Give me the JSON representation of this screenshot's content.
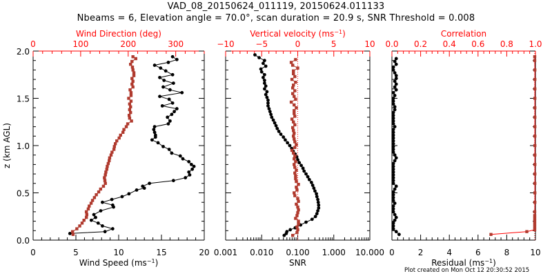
{
  "header": {
    "title_line1": "VAD_08_20150624_011119, 20150624.011133",
    "title_line2": "Nbeams = 6, Elevation angle = 70.0°, scan duration = 20.9 s, SNR Threshold = 0.008"
  },
  "footer": {
    "created": "Plot created on Mon Oct 12 20:30:52 2015"
  },
  "colors": {
    "primary": "#000000",
    "secondary": "#b03a2e",
    "axis_secondary": "#ff0000"
  },
  "chart_data": [
    {
      "type": "line",
      "panel": "wind",
      "ylabel": "z (km AGL)",
      "ylim": [
        0.0,
        2.0
      ],
      "yticks": [
        0.0,
        0.5,
        1.0,
        1.5,
        2.0
      ],
      "ytick_labels": [
        "0.0",
        "0.5",
        "1.0",
        "1.5",
        "2.0"
      ],
      "xlabel": "Wind Speed (ms",
      "xlabel_sup": "-1",
      "xlim": [
        0,
        20
      ],
      "xticks": [
        0,
        5,
        10,
        15,
        20
      ],
      "xtick_labels": [
        "0",
        "5",
        "10",
        "15",
        "20"
      ],
      "top_xlabel": "Wind Direction (deg)",
      "top_xlim": [
        0,
        360
      ],
      "top_xticks": [
        0,
        100,
        200,
        300
      ],
      "top_xtick_labels": [
        "0",
        "100",
        "200",
        "300"
      ],
      "series": [
        {
          "name": "Wind Speed",
          "axis": "bottom",
          "color": "#000000",
          "z": [
            0.07,
            0.09,
            0.12,
            0.15,
            0.18,
            0.21,
            0.24,
            0.27,
            0.31,
            0.35,
            0.37,
            0.4,
            0.43,
            0.46,
            0.49,
            0.53,
            0.55,
            0.57,
            0.6,
            0.63,
            0.66,
            0.69,
            0.72,
            0.75,
            0.78,
            0.8,
            0.83,
            0.86,
            0.89,
            0.92,
            0.96,
            0.99,
            1.03,
            1.06,
            1.09,
            1.11,
            1.14,
            1.17,
            1.2,
            1.23,
            1.26,
            1.3,
            1.33,
            1.36,
            1.39,
            1.42,
            1.45,
            1.49,
            1.52,
            1.56,
            1.59,
            1.62,
            1.66,
            1.69,
            1.72,
            1.75,
            1.79,
            1.82,
            1.85,
            1.88,
            1.91,
            1.94
          ],
          "values": [
            4.3,
            8.4,
            9.3,
            8.1,
            7.6,
            6.8,
            7.3,
            7.1,
            7.9,
            9.4,
            9.3,
            8.1,
            9.2,
            10.4,
            11.2,
            12.1,
            13.0,
            12.8,
            13.6,
            16.4,
            17.8,
            18.3,
            18.2,
            18.6,
            18.8,
            18.5,
            18.2,
            17.5,
            17.2,
            16.2,
            15.9,
            15.2,
            14.6,
            13.9,
            14.3,
            14.3,
            14.2,
            14.1,
            14.2,
            15.8,
            16.0,
            15.7,
            16.2,
            16.5,
            16.8,
            15.1,
            16.3,
            15.9,
            14.8,
            17.4,
            16.0,
            15.2,
            16.4,
            15.3,
            14.8,
            16.3,
            15.5,
            14.9,
            14.2,
            15.8,
            16.8,
            16.3
          ]
        },
        {
          "name": "Wind Direction",
          "axis": "top",
          "color": "#b03a2e",
          "z": [
            0.06,
            0.09,
            0.12,
            0.15,
            0.18,
            0.21,
            0.24,
            0.27,
            0.3,
            0.33,
            0.36,
            0.39,
            0.42,
            0.45,
            0.48,
            0.51,
            0.54,
            0.57,
            0.6,
            0.63,
            0.66,
            0.69,
            0.72,
            0.75,
            0.78,
            0.81,
            0.84,
            0.87,
            0.9,
            0.93,
            0.96,
            0.99,
            1.02,
            1.05,
            1.08,
            1.11,
            1.14,
            1.17,
            1.2,
            1.23,
            1.26,
            1.29,
            1.32,
            1.35,
            1.38,
            1.41,
            1.44,
            1.47,
            1.5,
            1.53,
            1.56,
            1.59,
            1.62,
            1.65,
            1.68,
            1.71,
            1.74,
            1.77,
            1.8,
            1.83,
            1.86,
            1.89,
            1.92,
            1.94
          ],
          "values": [
            84,
            83,
            92,
            98,
            103,
            107,
            112,
            113,
            112,
            116,
            118,
            122,
            125,
            129,
            133,
            138,
            142,
            148,
            152,
            151,
            150,
            152,
            153,
            155,
            156,
            158,
            160,
            161,
            164,
            166,
            170,
            171,
            173,
            176,
            181,
            184,
            189,
            191,
            196,
            199,
            207,
            203,
            202,
            205,
            203,
            205,
            203,
            206,
            201,
            206,
            206,
            204,
            210,
            208,
            210,
            208,
            212,
            212,
            210,
            209,
            205,
            208,
            216,
            210
          ]
        }
      ]
    },
    {
      "type": "line",
      "panel": "snr",
      "ylim": [
        0.0,
        2.0
      ],
      "xlabel": "SNR",
      "xscale": "log",
      "xlim": [
        0.001,
        10.0
      ],
      "xticks": [
        0.001,
        0.01,
        0.1,
        1.0,
        10.0
      ],
      "xtick_labels": [
        "0.001",
        "0.010",
        "0.100",
        "1.000",
        "10.000"
      ],
      "top_xlabel": "Vertical velocity (ms",
      "top_xlabel_sup": "-1",
      "top_xlim": [
        -10,
        10
      ],
      "top_xticks": [
        -10,
        -5,
        0,
        5,
        10
      ],
      "top_xtick_labels": [
        "−10",
        "−5",
        "0",
        "5",
        "10"
      ],
      "zero_reference_line": 0,
      "series": [
        {
          "name": "SNR",
          "axis": "bottom",
          "color": "#000000",
          "z": [
            0.05,
            0.07,
            0.09,
            0.11,
            0.13,
            0.16,
            0.19,
            0.22,
            0.25,
            0.28,
            0.31,
            0.34,
            0.37,
            0.4,
            0.43,
            0.46,
            0.49,
            0.52,
            0.55,
            0.58,
            0.61,
            0.64,
            0.67,
            0.7,
            0.73,
            0.76,
            0.79,
            0.82,
            0.85,
            0.88,
            0.91,
            0.94,
            0.97,
            1.0,
            1.03,
            1.06,
            1.09,
            1.12,
            1.15,
            1.18,
            1.21,
            1.24,
            1.27,
            1.3,
            1.33,
            1.36,
            1.39,
            1.42,
            1.45,
            1.48,
            1.51,
            1.54,
            1.57,
            1.6,
            1.63,
            1.66,
            1.69,
            1.72,
            1.75,
            1.78,
            1.81,
            1.84,
            1.87,
            1.9,
            1.93,
            1.96
          ],
          "values": [
            0.042,
            0.048,
            0.05,
            0.062,
            0.085,
            0.12,
            0.17,
            0.25,
            0.31,
            0.34,
            0.36,
            0.38,
            0.38,
            0.37,
            0.36,
            0.34,
            0.33,
            0.3,
            0.28,
            0.26,
            0.24,
            0.21,
            0.19,
            0.17,
            0.15,
            0.14,
            0.125,
            0.11,
            0.1,
            0.094,
            0.085,
            0.075,
            0.068,
            0.06,
            0.052,
            0.045,
            0.04,
            0.034,
            0.03,
            0.027,
            0.025,
            0.023,
            0.021,
            0.019,
            0.018,
            0.017,
            0.016,
            0.015,
            0.015,
            0.015,
            0.014,
            0.013,
            0.014,
            0.012,
            0.013,
            0.012,
            0.012,
            0.011,
            0.012,
            0.01,
            0.0095,
            0.013,
            0.011,
            0.012,
            0.0085,
            0.0065
          ]
        },
        {
          "name": "Vertical velocity",
          "axis": "top",
          "color": "#b03a2e",
          "z": [
            0.05,
            0.08,
            0.11,
            0.14,
            0.17,
            0.2,
            0.23,
            0.26,
            0.29,
            0.32,
            0.35,
            0.38,
            0.41,
            0.44,
            0.47,
            0.5,
            0.53,
            0.56,
            0.59,
            0.62,
            0.65,
            0.68,
            0.71,
            0.74,
            0.77,
            0.8,
            0.83,
            0.86,
            0.89,
            0.92,
            0.95,
            0.98,
            1.01,
            1.04,
            1.07,
            1.1,
            1.13,
            1.16,
            1.19,
            1.22,
            1.25,
            1.28,
            1.31,
            1.34,
            1.37,
            1.4,
            1.43,
            1.46,
            1.49,
            1.52,
            1.55,
            1.58,
            1.61,
            1.64,
            1.67,
            1.7,
            1.73,
            1.76,
            1.79,
            1.82,
            1.85,
            1.88,
            1.91
          ],
          "values": [
            -0.7,
            -0.1,
            0,
            -0.1,
            0.1,
            0.1,
            -0.3,
            -0.1,
            0,
            0.1,
            0,
            -0.2,
            0.1,
            0,
            -0.4,
            -0.5,
            -0.1,
            -0.2,
            0.1,
            -0.2,
            -0.3,
            -0.3,
            -0.4,
            -0.2,
            -0.4,
            -0.5,
            -0.3,
            -0.5,
            -0.4,
            -0.6,
            -0.8,
            -0.4,
            -0.2,
            -0.4,
            -0.5,
            -0.6,
            -0.5,
            -0.6,
            -0.7,
            -0.4,
            -0.6,
            -0.8,
            -0.4,
            -0.5,
            -0.5,
            -0.2,
            -0.5,
            -0.9,
            -0.3,
            -0.5,
            -0.7,
            -0.4,
            -0.7,
            -0.6,
            -0.3,
            -0.8,
            -0.4,
            -0.6,
            -0.6,
            0,
            -0.7,
            -0.9,
            -0.3
          ]
        }
      ]
    },
    {
      "type": "line",
      "panel": "residual",
      "ylim": [
        0.0,
        2.0
      ],
      "xlabel": "Residual (ms",
      "xlabel_sup": "-1",
      "xlim": [
        0,
        10
      ],
      "xticks": [
        0,
        2,
        4,
        6,
        8,
        10
      ],
      "xtick_labels": [
        "0",
        "2",
        "4",
        "6",
        "8",
        "10"
      ],
      "top_xlabel": "Correlation",
      "top_xlim": [
        0.0,
        1.0
      ],
      "top_xticks": [
        0.0,
        0.2,
        0.4,
        0.6,
        0.8,
        1.0
      ],
      "top_xtick_labels": [
        "0.0",
        "0.2",
        "0.4",
        "0.6",
        "0.8",
        "1.0"
      ],
      "series": [
        {
          "name": "Residual",
          "axis": "bottom",
          "color": "#000000",
          "z": [
            0.06,
            0.09,
            0.12,
            0.15,
            0.18,
            0.21,
            0.24,
            0.27,
            0.3,
            0.33,
            0.36,
            0.39,
            0.42,
            0.45,
            0.48,
            0.51,
            0.54,
            0.57,
            0.6,
            0.63,
            0.66,
            0.69,
            0.72,
            0.75,
            0.78,
            0.81,
            0.84,
            0.87,
            0.9,
            0.93,
            0.96,
            0.99,
            1.02,
            1.05,
            1.08,
            1.11,
            1.14,
            1.17,
            1.2,
            1.23,
            1.26,
            1.29,
            1.32,
            1.35,
            1.38,
            1.41,
            1.44,
            1.47,
            1.5,
            1.53,
            1.56,
            1.59,
            1.62,
            1.65,
            1.68,
            1.71,
            1.74,
            1.77,
            1.8,
            1.83,
            1.86,
            1.89,
            1.92
          ],
          "values": [
            0.5,
            0.3,
            0.1,
            0.1,
            0.1,
            0.2,
            0.3,
            0.2,
            0.1,
            0.1,
            0.1,
            0.2,
            0.1,
            0.1,
            0.1,
            0.1,
            0.2,
            0.3,
            0.1,
            0.1,
            0.1,
            0.1,
            0.1,
            0.1,
            0.1,
            0.1,
            0.2,
            0.3,
            0.2,
            0.1,
            0.1,
            0.1,
            0.1,
            0.1,
            0.1,
            0.1,
            0.1,
            0.1,
            0.2,
            0.1,
            0.1,
            0.1,
            0.1,
            0.1,
            0.2,
            0.2,
            0.1,
            0.1,
            0.1,
            0.2,
            0.1,
            0.3,
            0.2,
            0.3,
            0.2,
            0.3,
            0.3,
            0.2,
            0.1,
            0.1,
            0.3,
            0.2,
            0.3
          ]
        },
        {
          "name": "Correlation",
          "axis": "top",
          "color": "#b03a2e",
          "z": [
            0.06,
            0.09,
            0.11,
            0.14,
            0.17,
            0.2,
            0.23,
            0.26,
            0.3,
            0.4,
            0.5,
            0.6,
            0.7,
            0.8,
            0.9,
            1.0,
            1.1,
            1.2,
            1.3,
            1.4,
            1.5,
            1.6,
            1.7,
            1.8,
            1.9,
            1.94
          ],
          "values": [
            0.69,
            0.94,
            0.995,
            0.995,
            0.995,
            0.995,
            0.995,
            0.995,
            0.995,
            0.996,
            0.996,
            0.996,
            0.996,
            0.996,
            0.996,
            0.996,
            0.996,
            0.996,
            0.996,
            0.996,
            0.996,
            0.996,
            0.996,
            0.996,
            0.995,
            0.995
          ]
        }
      ]
    }
  ]
}
